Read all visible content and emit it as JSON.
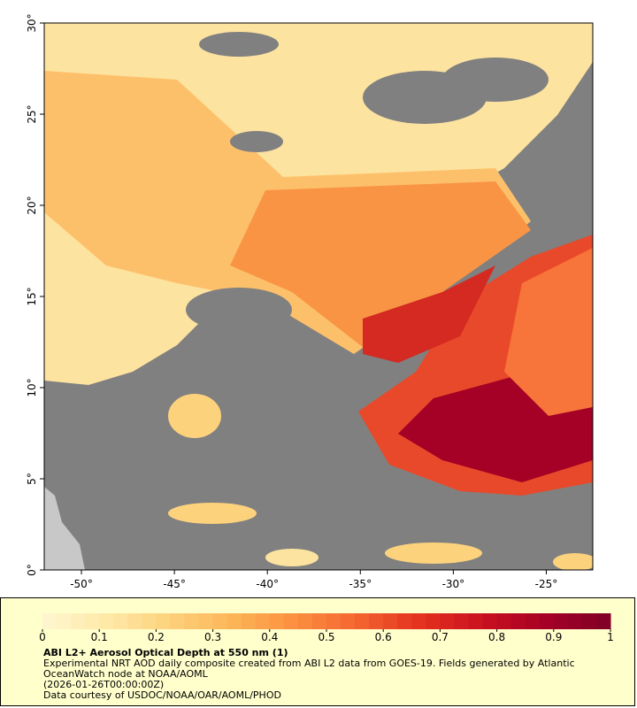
{
  "map": {
    "xlim": [
      -52,
      -22.5
    ],
    "ylim": [
      0,
      30
    ],
    "xticks": [
      {
        "value": -50,
        "label": "-50°"
      },
      {
        "value": -45,
        "label": "-45°"
      },
      {
        "value": -40,
        "label": "-40°"
      },
      {
        "value": -35,
        "label": "-35°"
      },
      {
        "value": -30,
        "label": "-30°"
      },
      {
        "value": -25,
        "label": "-25°"
      }
    ],
    "yticks": [
      {
        "value": 0,
        "label": "0°"
      },
      {
        "value": 5,
        "label": "5°"
      },
      {
        "value": 10,
        "label": "10°"
      },
      {
        "value": 15,
        "label": "15°"
      },
      {
        "value": 20,
        "label": "20°"
      },
      {
        "value": 25,
        "label": "25°"
      },
      {
        "value": 30,
        "label": "30°"
      }
    ]
  },
  "colorbar": {
    "range": [
      0,
      1
    ],
    "ticks": [
      0,
      0.1,
      0.2,
      0.3,
      0.4,
      0.5,
      0.6,
      0.7,
      0.8,
      0.9,
      1
    ],
    "colors": [
      "#fff6d0",
      "#fee9a8",
      "#fdd27c",
      "#fdb558",
      "#fb8f3f",
      "#f46430",
      "#e3311e",
      "#c8101f",
      "#a50026",
      "#7f0026"
    ]
  },
  "caption": {
    "title": "ABI L2+ Aerosol Optical Depth at 550 nm (1)",
    "line1": "Experimental NRT AOD daily composite created from ABI L2 data from GOES-19. Fields generated by Atlantic",
    "line2": "OceanWatch node at NOAA/AOML",
    "line3": "(2026-01-26T00:00:00Z)",
    "line4": "Data courtesy of USDOC/NOAA/OAR/AOML/PHOD"
  }
}
